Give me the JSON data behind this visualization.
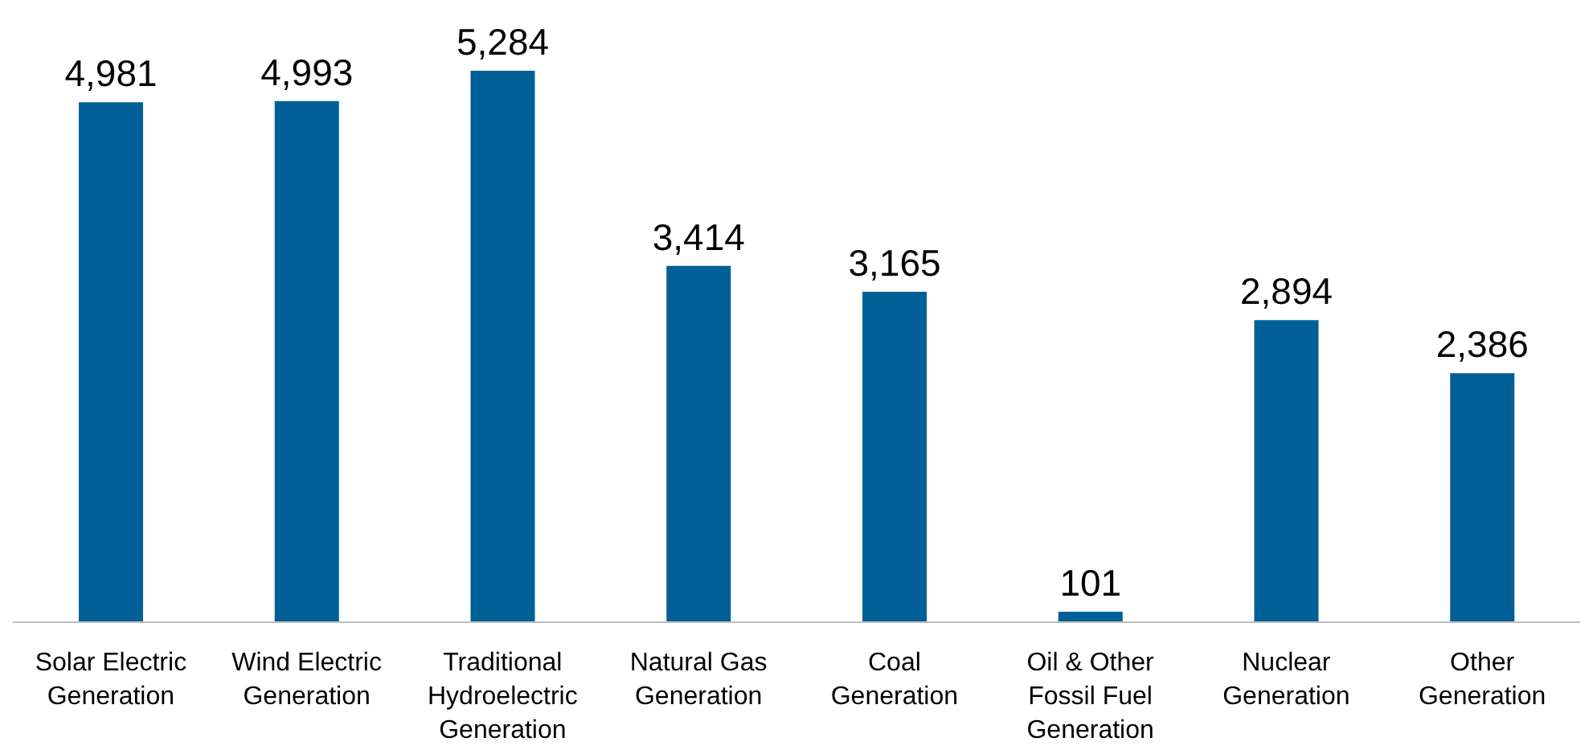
{
  "chart_data": {
    "type": "bar",
    "categories": [
      "Solar Electric Generation",
      "Wind Electric Generation",
      "Traditional Hydroelectric Generation",
      "Natural Gas Generation",
      "Coal Generation",
      "Oil & Other Fossil Fuel Generation",
      "Nuclear Generation",
      "Other Generation"
    ],
    "values": [
      4981,
      4993,
      5284,
      3414,
      3165,
      101,
      2894,
      2386
    ],
    "value_labels": [
      "4,981",
      "4,993",
      "5,284",
      "3,414",
      "3,165",
      "101",
      "2,894",
      "2,386"
    ],
    "color": "#005f96",
    "grid": false,
    "legend": false
  }
}
